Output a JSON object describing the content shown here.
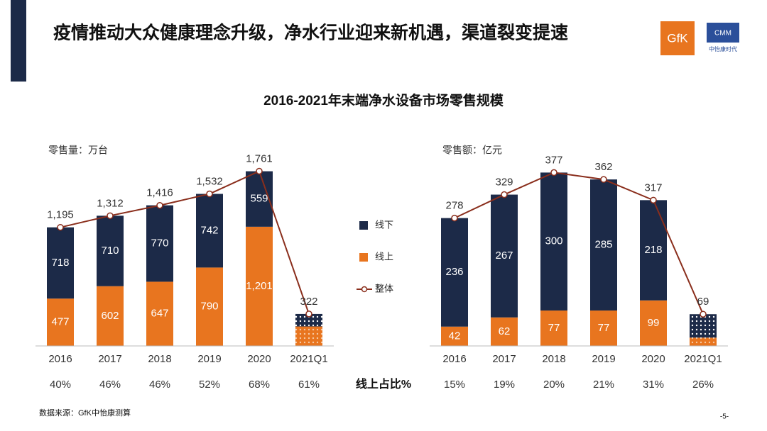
{
  "header": {
    "title": "疫情推动大众健康理念升级，净水行业迎来新机遇，渠道裂变提速"
  },
  "logos": {
    "gfk": "GfK",
    "cmm": "CMM",
    "cmm_sub": "中怡康时代"
  },
  "subtitle": "2016-2021年末端净水设备市场零售规模",
  "share_label": "线上占比%",
  "footer": {
    "source": "数据来源：GfK中怡康测算",
    "page": "-5-"
  },
  "chart_data": [
    {
      "type": "stacked_bar_line",
      "y_label": "零售量：万台",
      "categories": [
        "2016",
        "2017",
        "2018",
        "2019",
        "2020",
        "2021Q1"
      ],
      "ylim": [
        0,
        1900
      ],
      "hatched": [
        false,
        false,
        false,
        false,
        false,
        true
      ],
      "series": [
        {
          "name": "线下",
          "color": "#1c2a48",
          "values": [
            718,
            710,
            770,
            742,
            559,
            126
          ],
          "value_labels": [
            "718",
            "710",
            "770",
            "742",
            "559",
            null
          ]
        },
        {
          "name": "线上",
          "color": "#e8751f",
          "values": [
            477,
            602,
            647,
            790,
            1201,
            196
          ],
          "value_labels": [
            "477",
            "602",
            "647",
            "790",
            "1,201",
            null
          ]
        },
        {
          "name": "整体",
          "type": "line",
          "color": "#8a2e1c",
          "values": [
            1195,
            1312,
            1416,
            1532,
            1761,
            322
          ],
          "value_labels": [
            "1,195",
            "1,312",
            "1,416",
            "1,532",
            "1,761",
            "322"
          ]
        }
      ],
      "share": {
        "values": [
          40,
          46,
          46,
          52,
          68,
          61
        ],
        "value_labels": [
          "40%",
          "46%",
          "46%",
          "52%",
          "68%",
          "61%"
        ]
      }
    },
    {
      "type": "stacked_bar_line",
      "y_label": "零售额：亿元",
      "categories": [
        "2016",
        "2017",
        "2018",
        "2019",
        "2020",
        "2021Q1"
      ],
      "ylim": [
        0,
        410
      ],
      "hatched": [
        false,
        false,
        false,
        false,
        false,
        true
      ],
      "series": [
        {
          "name": "线下",
          "color": "#1c2a48",
          "values": [
            236,
            267,
            300,
            285,
            218,
            51
          ],
          "value_labels": [
            "236",
            "267",
            "300",
            "285",
            "218",
            null
          ]
        },
        {
          "name": "线上",
          "color": "#e8751f",
          "values": [
            42,
            62,
            77,
            77,
            99,
            18
          ],
          "value_labels": [
            "42",
            "62",
            "77",
            "77",
            "99",
            null
          ]
        },
        {
          "name": "整体",
          "type": "line",
          "color": "#8a2e1c",
          "values": [
            278,
            329,
            377,
            362,
            317,
            69
          ],
          "value_labels": [
            "278",
            "329",
            "377",
            "362",
            "317",
            "69"
          ]
        }
      ],
      "share": {
        "values": [
          15,
          19,
          20,
          21,
          31,
          26
        ],
        "value_labels": [
          "15%",
          "19%",
          "20%",
          "21%",
          "31%",
          "26%"
        ]
      }
    }
  ]
}
